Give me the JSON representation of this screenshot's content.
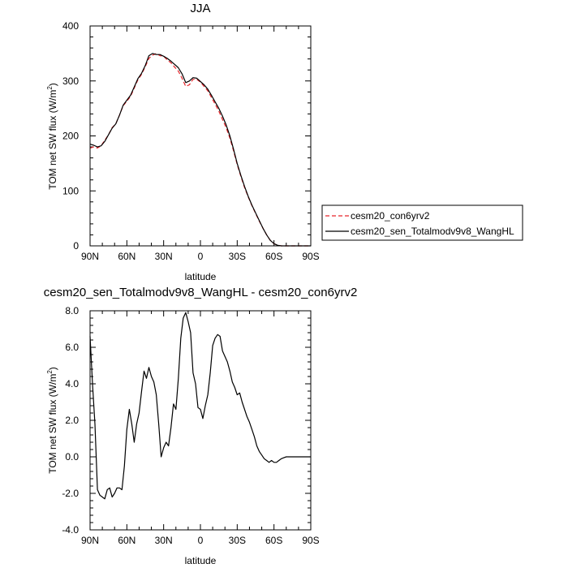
{
  "chart_data": [
    {
      "type": "line",
      "title": "JJA",
      "xlabel": "latitude",
      "ylabel": "TOM net SW flux (W/m",
      "ylabel_sup": "2",
      "ylabel_end": ")",
      "xlim": [
        90,
        -90
      ],
      "ylim": [
        0,
        400
      ],
      "x_ticks": [
        90,
        60,
        30,
        0,
        -30,
        -60,
        -90
      ],
      "x_tick_labels": [
        "90N",
        "60N",
        "30N",
        "0",
        "30S",
        "60S",
        "90S"
      ],
      "y_ticks": [
        0,
        100,
        200,
        300,
        400
      ],
      "y_tick_labels": [
        "0",
        "100",
        "200",
        "300",
        "400"
      ],
      "grid": false,
      "legend_position": "right",
      "series": [
        {
          "name": "cesm20_con6yrv2",
          "color": "#e8252b",
          "dash": "dashed",
          "x": [
            90,
            87,
            84,
            81,
            78,
            75,
            72,
            69,
            66,
            63,
            60,
            57,
            54,
            51,
            48,
            45,
            42,
            39,
            36,
            33,
            30,
            27,
            24,
            21,
            18,
            15,
            12,
            9,
            6,
            3,
            0,
            -3,
            -6,
            -9,
            -12,
            -15,
            -18,
            -21,
            -24,
            -27,
            -30,
            -33,
            -36,
            -39,
            -42,
            -45,
            -48,
            -51,
            -54,
            -57,
            -60,
            -63,
            -66,
            -69,
            -72,
            -75,
            -78,
            -81,
            -84,
            -87,
            -90
          ],
          "y": [
            178,
            180,
            178,
            182,
            192,
            202,
            215,
            222,
            238,
            255,
            263,
            272,
            287,
            302,
            312,
            326,
            341,
            347,
            350,
            346,
            345,
            338,
            333,
            325,
            318,
            305,
            290,
            293,
            303,
            303,
            298,
            290,
            282,
            270,
            258,
            245,
            230,
            215,
            196,
            173,
            148,
            126,
            106,
            89,
            73,
            59,
            45,
            32,
            20,
            10,
            4,
            1,
            0,
            0,
            0,
            0,
            0,
            0,
            0,
            0,
            0
          ]
        },
        {
          "name": "cesm20_sen_Totalmodv9v8_WangHL",
          "color": "#000000",
          "dash": "solid",
          "x": [
            90,
            87,
            84,
            81,
            78,
            75,
            72,
            69,
            66,
            63,
            60,
            57,
            54,
            51,
            48,
            45,
            42,
            39,
            36,
            33,
            30,
            27,
            24,
            21,
            18,
            15,
            12,
            9,
            6,
            3,
            0,
            -3,
            -6,
            -9,
            -12,
            -15,
            -18,
            -21,
            -24,
            -27,
            -30,
            -33,
            -36,
            -39,
            -42,
            -45,
            -48,
            -51,
            -54,
            -57,
            -60,
            -63,
            -66,
            -69,
            -72,
            -75,
            -78,
            -81,
            -84,
            -87,
            -90
          ],
          "y": [
            185,
            183,
            180,
            182,
            190,
            202,
            214,
            222,
            238,
            256,
            265,
            274,
            289,
            304,
            314,
            328,
            346,
            350,
            348,
            348,
            345,
            341,
            336,
            330,
            324,
            313,
            297,
            300,
            306,
            305,
            299,
            293,
            285,
            274,
            262,
            250,
            236,
            220,
            200,
            176,
            150,
            128,
            108,
            90,
            74,
            60,
            46,
            32,
            20,
            10,
            4,
            1,
            0,
            0,
            0,
            0,
            0,
            0,
            0,
            0,
            0
          ]
        }
      ]
    },
    {
      "type": "line",
      "title": "cesm20_sen_Totalmodv9v8_WangHL - cesm20_con6yrv2",
      "xlabel": "latitude",
      "ylabel": "TOM net SW flux (W/m",
      "ylabel_sup": "2",
      "ylabel_end": ")",
      "xlim": [
        90,
        -90
      ],
      "ylim": [
        -4,
        8
      ],
      "x_ticks": [
        90,
        60,
        30,
        0,
        -30,
        -60,
        -90
      ],
      "x_tick_labels": [
        "90N",
        "60N",
        "30N",
        "0",
        "30S",
        "60S",
        "90S"
      ],
      "y_ticks": [
        -4,
        -2,
        0,
        2,
        4,
        6,
        8
      ],
      "y_tick_labels": [
        "-4.0",
        "-2.0",
        "0.0",
        "2.0",
        "4.0",
        "6.0",
        "8.0"
      ],
      "grid": false,
      "series": [
        {
          "color": "#000000",
          "dash": "solid",
          "x": [
            90,
            88,
            86,
            84,
            82,
            80,
            78,
            76,
            74,
            72,
            70,
            68,
            66,
            64,
            62,
            60,
            58,
            56,
            54,
            52,
            50,
            48,
            46,
            44,
            42,
            40,
            38,
            36,
            34,
            32,
            30,
            28,
            26,
            24,
            22,
            20,
            18,
            16,
            14,
            12,
            10,
            8,
            6,
            4,
            2,
            0,
            -2,
            -4,
            -6,
            -8,
            -10,
            -12,
            -14,
            -16,
            -18,
            -20,
            -22,
            -24,
            -26,
            -28,
            -30,
            -32,
            -34,
            -36,
            -38,
            -40,
            -42,
            -44,
            -46,
            -48,
            -50,
            -52,
            -54,
            -56,
            -58,
            -60,
            -62,
            -64,
            -66,
            -68,
            -70,
            -75,
            -80,
            -85,
            -90
          ],
          "y": [
            6.6,
            4.0,
            1.8,
            -1.8,
            -2.1,
            -2.2,
            -2.3,
            -1.8,
            -1.7,
            -2.2,
            -2.0,
            -1.7,
            -1.7,
            -1.8,
            -0.5,
            1.5,
            2.6,
            1.8,
            0.8,
            1.8,
            2.4,
            3.6,
            4.7,
            4.3,
            4.9,
            4.4,
            4.1,
            3.4,
            1.8,
            0.0,
            0.5,
            0.8,
            0.6,
            1.6,
            2.9,
            2.6,
            4.3,
            6.5,
            7.6,
            7.9,
            7.4,
            6.8,
            4.6,
            4.0,
            2.7,
            2.6,
            2.1,
            2.8,
            3.4,
            4.6,
            6.1,
            6.5,
            6.7,
            6.6,
            5.8,
            5.5,
            5.2,
            4.7,
            4.1,
            3.8,
            3.4,
            3.5,
            3.0,
            2.6,
            2.2,
            1.9,
            1.5,
            1.1,
            0.6,
            0.3,
            0.1,
            -0.1,
            -0.2,
            -0.3,
            -0.2,
            -0.3,
            -0.3,
            -0.2,
            -0.1,
            -0.05,
            0.0,
            0.0,
            0.0,
            0.0,
            0.0
          ]
        }
      ]
    }
  ]
}
